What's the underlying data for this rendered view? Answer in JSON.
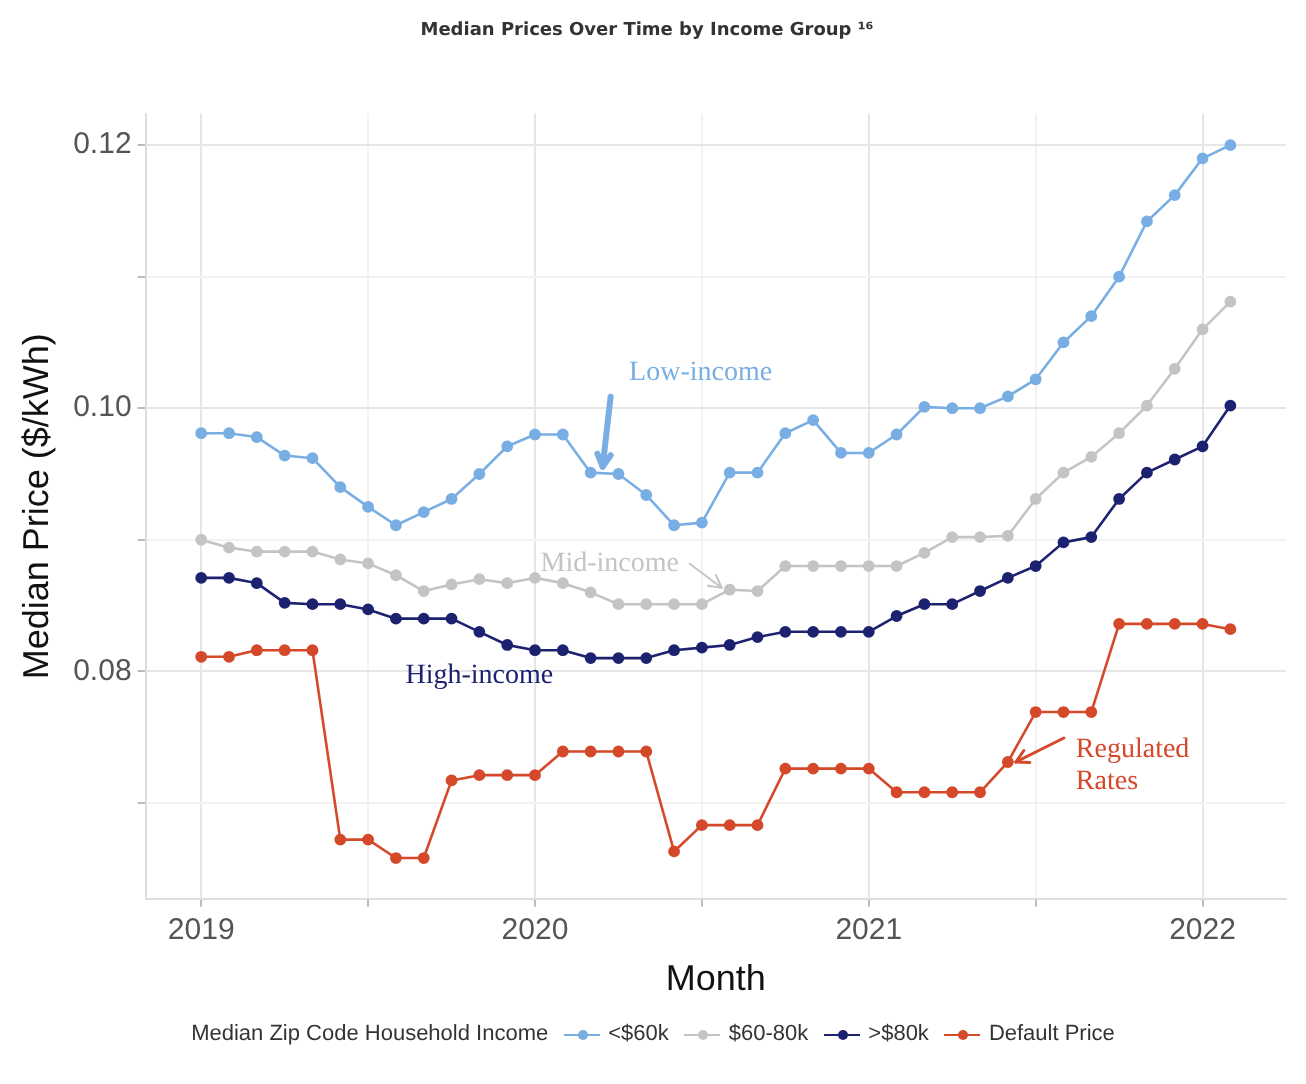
{
  "chart_data": {
    "type": "line",
    "title": "Median Prices Over Time by Income Group ¹⁶",
    "xlabel": "Month",
    "ylabel": "Median Price ($/kWh)",
    "legend_title": "Median Zip Code Household Income",
    "x": [
      "2019-01",
      "2019-02",
      "2019-03",
      "2019-04",
      "2019-05",
      "2019-06",
      "2019-07",
      "2019-08",
      "2019-09",
      "2019-10",
      "2019-11",
      "2019-12",
      "2020-01",
      "2020-02",
      "2020-03",
      "2020-04",
      "2020-05",
      "2020-06",
      "2020-07",
      "2020-08",
      "2020-09",
      "2020-10",
      "2020-11",
      "2020-12",
      "2021-01",
      "2021-02",
      "2021-03",
      "2021-04",
      "2021-05",
      "2021-06",
      "2021-07",
      "2021-08",
      "2021-09",
      "2021-10",
      "2021-11",
      "2021-12",
      "2022-01",
      "2022-02"
    ],
    "series": [
      {
        "name": "<$60k",
        "color": "#78aee3",
        "values": [
          0.0981,
          0.0981,
          0.0978,
          0.0964,
          0.0962,
          0.094,
          0.0925,
          0.0911,
          0.0921,
          0.0931,
          0.095,
          0.0971,
          0.098,
          0.098,
          0.0951,
          0.095,
          0.0934,
          0.0911,
          0.0913,
          0.0951,
          0.0951,
          0.0981,
          0.0991,
          0.0966,
          0.0966,
          0.098,
          0.1001,
          0.1,
          0.1,
          0.1009,
          0.1022,
          0.105,
          0.107,
          0.11,
          0.1142,
          0.1162,
          0.119,
          0.12
        ]
      },
      {
        "name": "$60-80k",
        "color": "#c4c4c4",
        "values": [
          0.09,
          0.0894,
          0.0891,
          0.0891,
          0.0891,
          0.0885,
          0.0882,
          0.0873,
          0.0861,
          0.0866,
          0.087,
          0.0867,
          0.0871,
          0.0867,
          0.086,
          0.0851,
          0.0851,
          0.0851,
          0.0851,
          0.0862,
          0.0861,
          0.088,
          0.088,
          0.088,
          0.088,
          0.088,
          0.089,
          0.0902,
          0.0902,
          0.0903,
          0.0931,
          0.0951,
          0.0963,
          0.0981,
          0.1002,
          0.103,
          0.106,
          0.1081
        ]
      },
      {
        "name": ">$80k",
        "color": "#1c2170",
        "values": [
          0.0871,
          0.0871,
          0.0867,
          0.0852,
          0.0851,
          0.0851,
          0.0847,
          0.084,
          0.084,
          0.084,
          0.083,
          0.082,
          0.0816,
          0.0816,
          0.081,
          0.081,
          0.081,
          0.0816,
          0.0818,
          0.082,
          0.0826,
          0.083,
          0.083,
          0.083,
          0.083,
          0.0842,
          0.0851,
          0.0851,
          0.0861,
          0.0871,
          0.088,
          0.0898,
          0.0902,
          0.0931,
          0.0951,
          0.0961,
          0.0971,
          0.1002
        ]
      },
      {
        "name": "Default Price",
        "color": "#d4492a",
        "values": [
          0.0811,
          0.0811,
          0.0816,
          0.0816,
          0.0816,
          0.0672,
          0.0672,
          0.0658,
          0.0658,
          0.0717,
          0.0721,
          0.0721,
          0.0721,
          0.0739,
          0.0739,
          0.0739,
          0.0739,
          0.0663,
          0.0683,
          0.0683,
          0.0683,
          0.0726,
          0.0726,
          0.0726,
          0.0726,
          0.0708,
          0.0708,
          0.0708,
          0.0708,
          0.0731,
          0.0769,
          0.0769,
          0.0769,
          0.0836,
          0.0836,
          0.0836,
          0.0836,
          0.0832
        ]
      }
    ],
    "xlim": [
      "2018-11",
      "2022-04"
    ],
    "xticks": [
      {
        "value": "2019-01",
        "label": "2019"
      },
      {
        "value": "2019-07",
        "label": null
      },
      {
        "value": "2020-01",
        "label": "2020"
      },
      {
        "value": "2020-07",
        "label": null
      },
      {
        "value": "2021-01",
        "label": "2021"
      },
      {
        "value": "2021-07",
        "label": null
      },
      {
        "value": "2022-01",
        "label": "2022"
      }
    ],
    "ylim": [
      0.0627,
      0.1224
    ],
    "yticks": [
      {
        "value": 0.07,
        "label": null
      },
      {
        "value": 0.08,
        "label": "0.08"
      },
      {
        "value": 0.09,
        "label": null
      },
      {
        "value": 0.1,
        "label": "0.10"
      },
      {
        "value": 0.11,
        "label": null
      },
      {
        "value": 0.12,
        "label": "0.12"
      }
    ],
    "annotations": [
      {
        "text": "Low-income",
        "x": "2020-03",
        "y": 0.0951
      },
      {
        "text": "Mid-income",
        "x": "2020-08",
        "y": 0.0862
      },
      {
        "text": "High-income",
        "x": "2019-11",
        "y": 0.083
      },
      {
        "text": "Regulated Rates",
        "x": "2021-06",
        "y": 0.0731
      }
    ],
    "grid": true,
    "legend": "bottom",
    "marker": "circle",
    "line_style": "solid"
  }
}
